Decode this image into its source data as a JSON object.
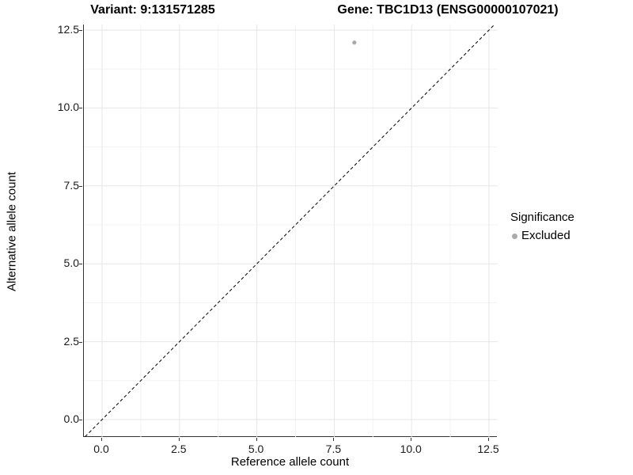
{
  "chart_data": {
    "type": "scatter",
    "title_variant": "Variant: 9:131571285",
    "title_gene": "Gene: TBC1D13 (ENSG00000107021)",
    "xlabel": "Reference allele count",
    "ylabel": "Alternative allele count",
    "x_ticks": [
      0.0,
      2.5,
      5.0,
      7.5,
      10.0,
      12.5
    ],
    "y_ticks": [
      0.0,
      2.5,
      5.0,
      7.5,
      10.0,
      12.5
    ],
    "x_tick_labels": [
      "0.0",
      "2.5",
      "5.0",
      "7.5",
      "10.0",
      "12.5"
    ],
    "y_tick_labels": [
      "0.0",
      "2.5",
      "5.0",
      "7.5",
      "10.0",
      "12.5"
    ],
    "xlim": [
      -0.6,
      13.4
    ],
    "ylim": [
      -0.6,
      12.7
    ],
    "grid": "major+minor",
    "points": [
      {
        "x": 8.15,
        "y": 12.1,
        "series": "Excluded"
      }
    ],
    "reference_line": {
      "type": "identity",
      "slope": 1,
      "intercept": 0,
      "style": "dashed"
    },
    "legend": {
      "title": "Significance",
      "position": "right",
      "entries": [
        {
          "label": "Excluded",
          "color": "#aaaaaa"
        }
      ]
    }
  },
  "colors": {
    "point": "#aaaaaa",
    "axis_line": "#333333",
    "grid_major": "#e6e6e6",
    "grid_minor": "#f3f3f3",
    "dashed_line": "#000000",
    "text": "#000000"
  }
}
